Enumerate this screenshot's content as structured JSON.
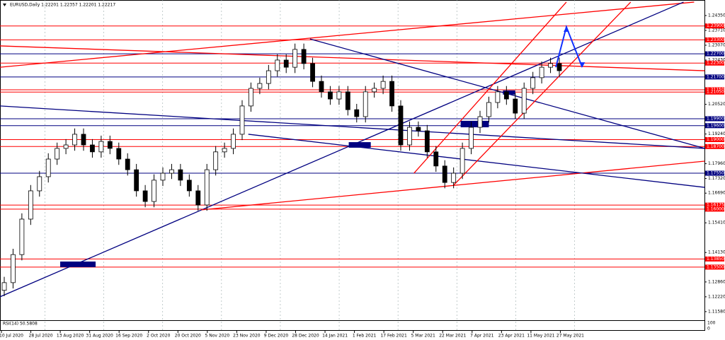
{
  "chart_data": {
    "type": "candlestick",
    "title": "EURUSD,Daily  1.22201 1.22357 1.22201 1.22217",
    "ylim": [
      1.1121,
      1.2502
    ],
    "yticks": [
      {
        "value": 1.2435,
        "label": "1.24350"
      },
      {
        "value": 1.2371,
        "label": "1.23710"
      },
      {
        "value": 1.2307,
        "label": "1.23070"
      },
      {
        "value": 1.2243,
        "label": "1.22430"
      },
      {
        "value": 1.2052,
        "label": "1.20520"
      },
      {
        "value": 1.1924,
        "label": "1.19240"
      },
      {
        "value": 1.1796,
        "label": "1.17960"
      },
      {
        "value": 1.1732,
        "label": "1.17320"
      },
      {
        "value": 1.1669,
        "label": "1.16690"
      },
      {
        "value": 1.1541,
        "label": "1.15410"
      },
      {
        "value": 1.1413,
        "label": "1.14130"
      },
      {
        "value": 1.1286,
        "label": "1.12860"
      },
      {
        "value": 1.1222,
        "label": "1.12220"
      },
      {
        "value": 1.1158,
        "label": "1.11580"
      }
    ],
    "x_labels": [
      "10 Jul 2020",
      "28 Jul 2020",
      "13 Aug 2020",
      "31 Aug 2020",
      "16 Sep 2020",
      "2 Oct 2020",
      "20 Oct 2020",
      "5 Nov 2020",
      "23 Nov 2020",
      "9 Dec 2020",
      "28 Dec 2020",
      "14 Jan 2021",
      "1 Feb 2021",
      "17 Feb 2021",
      "5 Mar 2021",
      "22 Mar 2021",
      "7 Apr 2021",
      "23 Apr 2021",
      "11 May 2021",
      "27 May 2021"
    ],
    "grid": true,
    "up_color": "#ffffff",
    "down_color": "#000000",
    "candles": [
      [
        1.125,
        1.1308,
        1.1225,
        1.1283
      ],
      [
        1.1283,
        1.1429,
        1.1258,
        1.1404
      ],
      [
        1.1404,
        1.1582,
        1.1379,
        1.1557
      ],
      [
        1.1557,
        1.1704,
        1.1532,
        1.1679
      ],
      [
        1.1679,
        1.1765,
        1.1654,
        1.174
      ],
      [
        1.174,
        1.1841,
        1.1715,
        1.1816
      ],
      [
        1.1816,
        1.1887,
        1.1791,
        1.1862
      ],
      [
        1.1862,
        1.1902,
        1.1837,
        1.1877
      ],
      [
        1.1877,
        1.1948,
        1.1852,
        1.1923
      ],
      [
        1.1923,
        1.1948,
        1.1852,
        1.1877
      ],
      [
        1.1877,
        1.1902,
        1.1822,
        1.1847
      ],
      [
        1.1847,
        1.1917,
        1.1822,
        1.1892
      ],
      [
        1.1892,
        1.1917,
        1.1837,
        1.1862
      ],
      [
        1.1862,
        1.1887,
        1.1791,
        1.1816
      ],
      [
        1.1816,
        1.1841,
        1.1745,
        1.177
      ],
      [
        1.177,
        1.1795,
        1.1654,
        1.1679
      ],
      [
        1.1679,
        1.1704,
        1.1608,
        1.1633
      ],
      [
        1.1633,
        1.175,
        1.1608,
        1.1725
      ],
      [
        1.1725,
        1.178,
        1.17,
        1.1755
      ],
      [
        1.1755,
        1.1795,
        1.173,
        1.177
      ],
      [
        1.177,
        1.1795,
        1.17,
        1.1725
      ],
      [
        1.1725,
        1.175,
        1.1654,
        1.1679
      ],
      [
        1.1679,
        1.1704,
        1.1593,
        1.1618
      ],
      [
        1.1618,
        1.1795,
        1.1593,
        1.177
      ],
      [
        1.177,
        1.1872,
        1.1745,
        1.1847
      ],
      [
        1.1847,
        1.1887,
        1.1822,
        1.1862
      ],
      [
        1.1862,
        1.1948,
        1.1837,
        1.1923
      ],
      [
        1.1923,
        1.207,
        1.1898,
        1.2045
      ],
      [
        1.2045,
        1.2146,
        1.202,
        1.2121
      ],
      [
        1.2121,
        1.2167,
        1.2096,
        1.2142
      ],
      [
        1.2142,
        1.2222,
        1.2117,
        1.2197
      ],
      [
        1.2197,
        1.2268,
        1.2172,
        1.2243
      ],
      [
        1.2243,
        1.2268,
        1.2187,
        1.2212
      ],
      [
        1.2212,
        1.2314,
        1.2187,
        1.2289
      ],
      [
        1.2289,
        1.2314,
        1.2203,
        1.2228
      ],
      [
        1.2228,
        1.2253,
        1.2126,
        1.2151
      ],
      [
        1.2151,
        1.2176,
        1.2081,
        1.2106
      ],
      [
        1.2106,
        1.2131,
        1.205,
        1.2075
      ],
      [
        1.2075,
        1.2131,
        1.205,
        1.2106
      ],
      [
        1.2106,
        1.2131,
        1.2004,
        1.2029
      ],
      [
        1.2029,
        1.2054,
        1.1974,
        1.1999
      ],
      [
        1.1999,
        1.2131,
        1.1974,
        1.2106
      ],
      [
        1.2106,
        1.2146,
        1.2081,
        1.2121
      ],
      [
        1.2121,
        1.2176,
        1.2096,
        1.2151
      ],
      [
        1.2151,
        1.2176,
        1.202,
        1.2045
      ],
      [
        1.2045,
        1.207,
        1.1852,
        1.1877
      ],
      [
        1.1877,
        1.1978,
        1.1852,
        1.1953
      ],
      [
        1.1953,
        1.1978,
        1.1913,
        1.1938
      ],
      [
        1.1938,
        1.1963,
        1.1822,
        1.1847
      ],
      [
        1.1847,
        1.1872,
        1.1761,
        1.1786
      ],
      [
        1.1786,
        1.1811,
        1.169,
        1.1715
      ],
      [
        1.1715,
        1.178,
        1.169,
        1.1755
      ],
      [
        1.1755,
        1.1887,
        1.173,
        1.1862
      ],
      [
        1.1862,
        1.1978,
        1.1837,
        1.1953
      ],
      [
        1.1953,
        1.2024,
        1.1928,
        1.1999
      ],
      [
        1.1999,
        1.2085,
        1.1974,
        1.206
      ],
      [
        1.206,
        1.2131,
        1.2035,
        1.2106
      ],
      [
        1.2106,
        1.2131,
        1.205,
        1.2075
      ],
      [
        1.2075,
        1.21,
        1.1989,
        1.2014
      ],
      [
        1.2014,
        1.2146,
        1.1989,
        1.2121
      ],
      [
        1.2121,
        1.2192,
        1.2096,
        1.2167
      ],
      [
        1.2167,
        1.2237,
        1.2142,
        1.2212
      ],
      [
        1.2212,
        1.2253,
        1.2187,
        1.2228
      ],
      [
        1.2228,
        1.2253,
        1.2172,
        1.2197
      ]
    ],
    "levels": [
      {
        "value": 1.239,
        "label": "1.23900",
        "color": "#ff0000"
      },
      {
        "value": 1.233,
        "label": "1.23300",
        "color": "#ff0000"
      },
      {
        "value": 1.227,
        "label": "1.22700",
        "color": "#000080"
      },
      {
        "value": 1.223,
        "label": "1.22300",
        "color": "#ff0000"
      },
      {
        "value": 1.217,
        "label": "1.21700",
        "color": "#000080"
      },
      {
        "value": 1.2115,
        "label": "1.21150",
        "color": "#ff0000"
      },
      {
        "value": 1.2105,
        "label": "1.21050",
        "color": "#ff0000"
      },
      {
        "value": 1.199,
        "label": "1.19900",
        "color": "#000080"
      },
      {
        "value": 1.196,
        "label": "1.19600",
        "color": "#000080"
      },
      {
        "value": 1.19,
        "label": "1.19000",
        "color": "#ff0000"
      },
      {
        "value": 1.187,
        "label": "1.18700",
        "color": "#ff0000"
      },
      {
        "value": 1.1755,
        "label": "1.17550",
        "color": "#000080"
      },
      {
        "value": 1.16175,
        "label": "1.16175",
        "color": "#ff0000"
      },
      {
        "value": 1.16,
        "label": "1.16000",
        "color": "#ff0000"
      },
      {
        "value": 1.1385,
        "label": "1.13850",
        "color": "#ff0000"
      },
      {
        "value": 1.135,
        "label": "1.13500",
        "color": "#ff0000"
      }
    ],
    "trendlines": [
      {
        "color": "#ff0000",
        "x": [
          -0.48,
          78.3
        ],
        "y": [
          1.2212,
          1.2493
        ]
      },
      {
        "color": "#ff0000",
        "x": [
          -0.48,
          79.5
        ],
        "y": [
          1.2304,
          1.2197
        ]
      },
      {
        "color": "#000080",
        "x": [
          -0.48,
          79.5
        ],
        "y": [
          1.2045,
          1.1862
        ]
      },
      {
        "color": "#000080",
        "x": [
          34.7,
          79.5
        ],
        "y": [
          1.2334,
          1.1862
        ]
      },
      {
        "color": "#000080",
        "x": [
          -0.48,
          77.1
        ],
        "y": [
          1.1222,
          1.2493
        ]
      },
      {
        "color": "#ff0000",
        "x": [
          22.4,
          79.5
        ],
        "y": [
          1.1597,
          1.1807
        ]
      },
      {
        "color": "#000080",
        "x": [
          27.7,
          79.5
        ],
        "y": [
          1.1923,
          1.1694
        ]
      },
      {
        "color": "#ff0000",
        "x": [
          46.5,
          63.8
        ],
        "y": [
          1.1755,
          1.2493
        ]
      },
      {
        "color": "#ff0000",
        "x": [
          51.0,
          71.1
        ],
        "y": [
          1.1703,
          1.2493
        ]
      }
    ],
    "projection": {
      "color": "#1030ff",
      "x": [
        62.6,
        63.8,
        65.6
      ],
      "y": [
        1.2212,
        1.2386,
        1.2212
      ]
    },
    "zones": [
      {
        "color": "#000080",
        "x": [
          6.35,
          10.37
        ],
        "y": [
          1.1374,
          1.135
        ]
      },
      {
        "color": "#000080",
        "x": [
          39.1,
          41.6
        ],
        "y": [
          1.1889,
          1.1865
        ]
      },
      {
        "color": "#000080",
        "x": [
          51.8,
          55.0
        ],
        "y": [
          1.1981,
          1.1953
        ]
      },
      {
        "color": "#000080",
        "x": [
          56.6,
          58.0
        ],
        "y": [
          1.2112,
          1.2094
        ]
      }
    ],
    "rsi_label": "RSI(14) 50.5808",
    "rsi_ticks": [
      "100",
      "0"
    ]
  }
}
